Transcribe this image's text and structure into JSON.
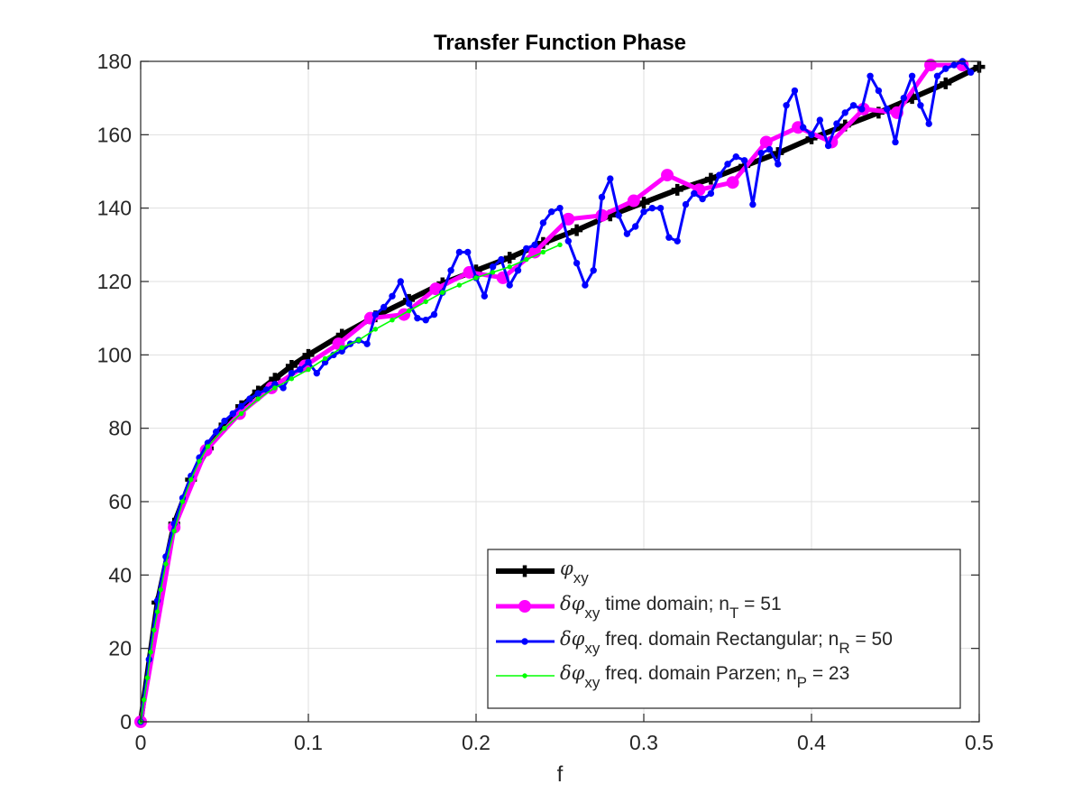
{
  "chart_data": {
    "type": "line",
    "title": "Transfer Function Phase",
    "xlabel": "f",
    "ylabel": "",
    "xlim": [
      0,
      0.5
    ],
    "ylim": [
      0,
      180
    ],
    "xticks": [
      "0",
      "0.1",
      "0.2",
      "0.3",
      "0.4",
      "0.5"
    ],
    "yticks": [
      "0",
      "20",
      "40",
      "60",
      "80",
      "100",
      "120",
      "140",
      "160",
      "180"
    ],
    "grid": true,
    "legend_position": "bottom-right",
    "series": [
      {
        "name": "φxy",
        "legend_parts": [
          {
            "t": "φ",
            "italic": true
          },
          {
            "t": "xy",
            "sub": true
          }
        ],
        "color": "#000000",
        "marker": "plus",
        "x": [
          0,
          0.01,
          0.02,
          0.03,
          0.04,
          0.05,
          0.06,
          0.07,
          0.08,
          0.09,
          0.1,
          0.12,
          0.14,
          0.16,
          0.18,
          0.2,
          0.22,
          0.24,
          0.26,
          0.28,
          0.3,
          0.32,
          0.34,
          0.36,
          0.38,
          0.4,
          0.42,
          0.44,
          0.46,
          0.48,
          0.5
        ],
        "y": [
          0,
          32.5,
          54,
          66,
          74.5,
          81,
          86,
          90,
          93.5,
          97,
          100,
          105.5,
          110.5,
          115,
          119.5,
          123,
          126.5,
          130.5,
          134,
          138,
          141.5,
          145,
          148,
          151.5,
          155,
          159,
          162.5,
          166,
          170,
          174,
          178.5
        ]
      },
      {
        "name": "δφxy time domain; nT = 51",
        "legend_parts": [
          {
            "t": "δφ",
            "italic": true
          },
          {
            "t": "xy",
            "sub": true
          },
          {
            "t": " time domain; n"
          },
          {
            "t": "T",
            "sub": true
          },
          {
            "t": " = 51"
          }
        ],
        "color": "#ff00ff",
        "marker": "circle",
        "x": [
          0,
          0.02,
          0.039,
          0.059,
          0.078,
          0.098,
          0.118,
          0.137,
          0.157,
          0.176,
          0.196,
          0.216,
          0.235,
          0.255,
          0.275,
          0.294,
          0.314,
          0.333,
          0.353,
          0.373,
          0.392,
          0.412,
          0.431,
          0.451,
          0.471,
          0.49
        ],
        "y": [
          0,
          53,
          74,
          84,
          91,
          97,
          103,
          110,
          111,
          118,
          122.5,
          121,
          128,
          137,
          138,
          142,
          149,
          145,
          147,
          158,
          162,
          158,
          167,
          166,
          179,
          179
        ]
      },
      {
        "name": "δφxy freq. domain Rectangular; nR = 50",
        "legend_parts": [
          {
            "t": "δφ",
            "italic": true
          },
          {
            "t": "xy",
            "sub": true
          },
          {
            "t": " freq. domain Rectangular; n"
          },
          {
            "t": "R",
            "sub": true
          },
          {
            "t": " = 50"
          }
        ],
        "color": "#0000ff",
        "marker": "dot",
        "x": [
          0,
          0.005,
          0.01,
          0.015,
          0.02,
          0.025,
          0.03,
          0.035,
          0.04,
          0.045,
          0.05,
          0.055,
          0.06,
          0.065,
          0.07,
          0.075,
          0.08,
          0.085,
          0.09,
          0.095,
          0.1,
          0.105,
          0.11,
          0.115,
          0.12,
          0.125,
          0.13,
          0.135,
          0.14,
          0.145,
          0.15,
          0.155,
          0.16,
          0.165,
          0.17,
          0.175,
          0.18,
          0.185,
          0.19,
          0.195,
          0.2,
          0.205,
          0.21,
          0.215,
          0.22,
          0.225,
          0.23,
          0.235,
          0.24,
          0.245,
          0.25,
          0.255,
          0.26,
          0.265,
          0.27,
          0.275,
          0.28,
          0.285,
          0.29,
          0.295,
          0.3,
          0.305,
          0.31,
          0.315,
          0.32,
          0.325,
          0.33,
          0.335,
          0.34,
          0.345,
          0.35,
          0.355,
          0.36,
          0.365,
          0.37,
          0.375,
          0.38,
          0.385,
          0.39,
          0.395,
          0.4,
          0.405,
          0.41,
          0.415,
          0.42,
          0.425,
          0.43,
          0.435,
          0.44,
          0.445,
          0.45,
          0.455,
          0.46,
          0.465,
          0.47,
          0.475,
          0.48,
          0.485,
          0.49,
          0.495
        ],
        "y": [
          0,
          17,
          33,
          45,
          54,
          61,
          67,
          72,
          76,
          79,
          82,
          84,
          86,
          88,
          89.5,
          90.5,
          92,
          91,
          95,
          96,
          98,
          95,
          98,
          100,
          101,
          103,
          104,
          103,
          111,
          113,
          116,
          120,
          114,
          110,
          109.5,
          111,
          117,
          123,
          128,
          128,
          121,
          116,
          124,
          126,
          119,
          123,
          129,
          130,
          136,
          139,
          140,
          131,
          125,
          119,
          123,
          143,
          148,
          138,
          133,
          135,
          139,
          140,
          140,
          132,
          131,
          141,
          144,
          142.5,
          144,
          149,
          152,
          154,
          153,
          141,
          155,
          156,
          152,
          168,
          172,
          162,
          160,
          164,
          157,
          163,
          166,
          168,
          167,
          176,
          172,
          167,
          158,
          170,
          176,
          168,
          163,
          176,
          178,
          179,
          180,
          177
        ]
      },
      {
        "name": "δφxy freq. domain Parzen; nP = 23",
        "legend_parts": [
          {
            "t": "δφ",
            "italic": true
          },
          {
            "t": "xy",
            "sub": true
          },
          {
            "t": " freq. domain Parzen; n"
          },
          {
            "t": "P",
            "sub": true
          },
          {
            "t": " = 23"
          }
        ],
        "color": "#00ff00",
        "marker": "dot",
        "x": [
          0,
          0.002,
          0.004,
          0.006,
          0.008,
          0.01,
          0.012,
          0.015,
          0.02,
          0.025,
          0.03,
          0.035,
          0.04,
          0.05,
          0.06,
          0.07,
          0.08,
          0.09,
          0.1,
          0.11,
          0.12,
          0.13,
          0.14,
          0.15,
          0.16,
          0.17,
          0.18,
          0.19,
          0.2,
          0.21,
          0.22,
          0.23,
          0.24,
          0.25
        ],
        "y": [
          0,
          6,
          12,
          19,
          25,
          30,
          36,
          43,
          52,
          60,
          66,
          71,
          75,
          80,
          84,
          88,
          91,
          93.5,
          96,
          99,
          102,
          104,
          107,
          109.5,
          112,
          114.5,
          117,
          119,
          121,
          122.5,
          124,
          126,
          128,
          130
        ]
      }
    ]
  }
}
